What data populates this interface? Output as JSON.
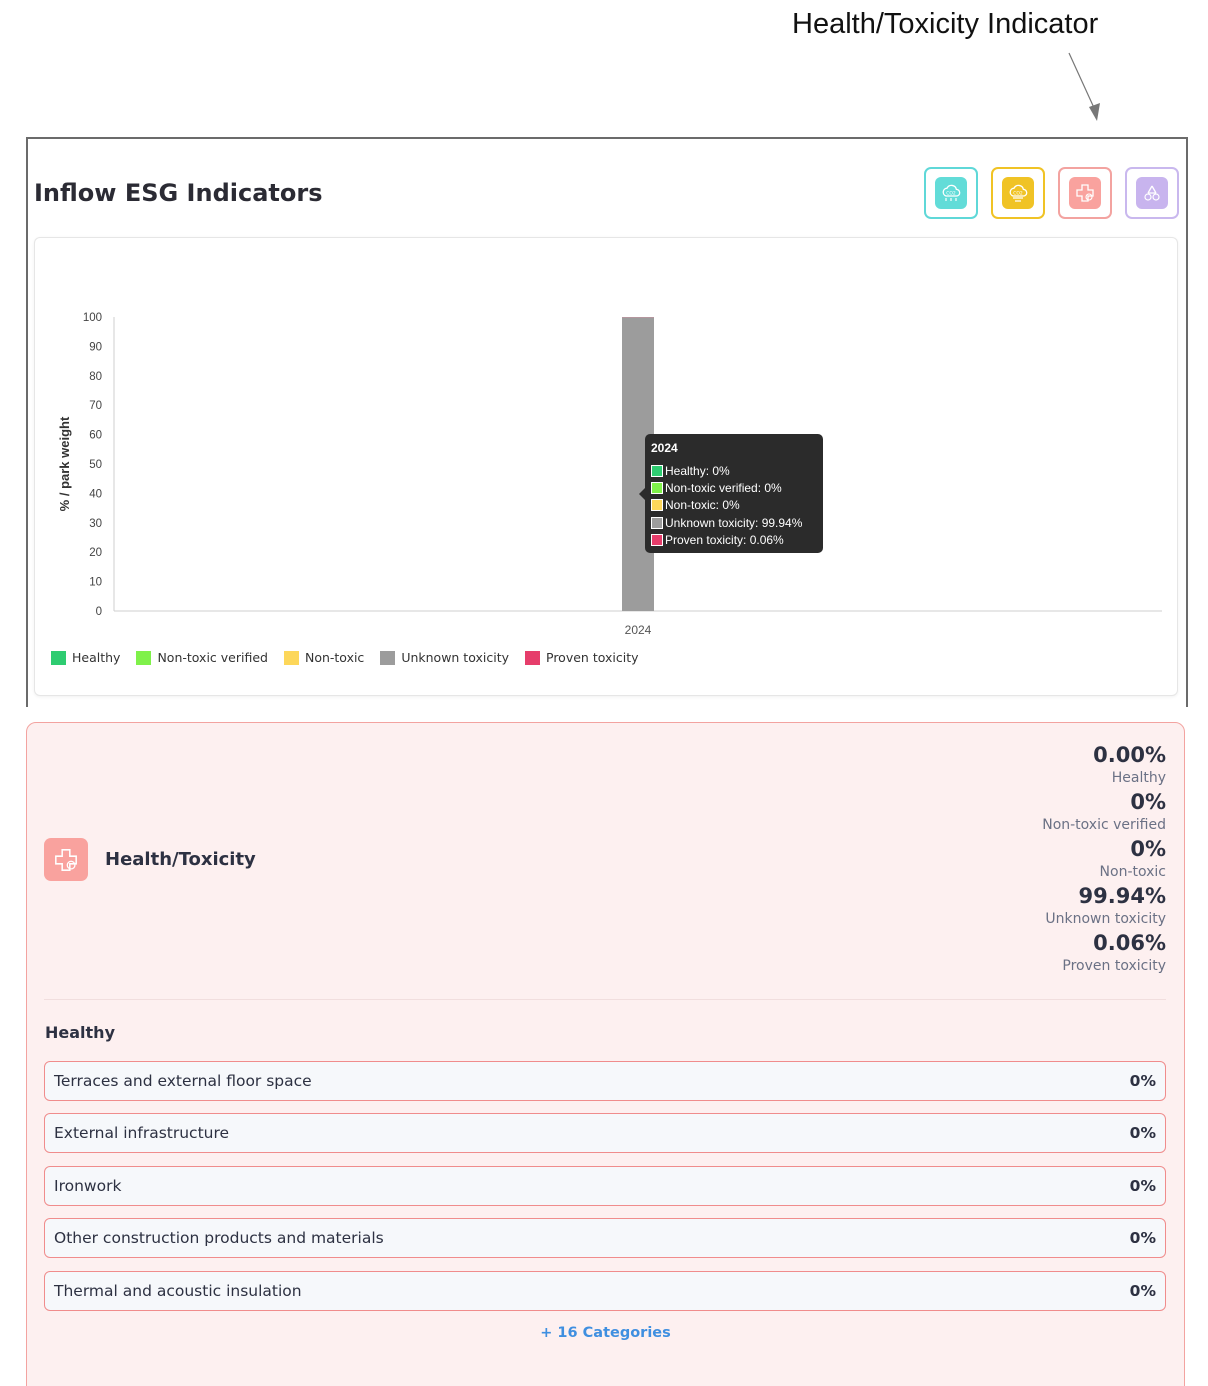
{
  "annotation": {
    "title": "Health/Toxicity Indicator"
  },
  "panel": {
    "title": "Inflow ESG Indicators"
  },
  "indicator_buttons": [
    {
      "name": "carbon-inflow",
      "icon": "co2-cloud-icon",
      "border": "#5fd8d8",
      "fill": "#62dcd8"
    },
    {
      "name": "carbon-stock",
      "icon": "co2-cloud-icon",
      "border": "#f0c325",
      "fill": "#f0c325"
    },
    {
      "name": "health-toxicity",
      "icon": "medical-cross-icon",
      "border": "#f3a3a0",
      "fill": "#f9a29e"
    },
    {
      "name": "circularity",
      "icon": "recycle-icon",
      "border": "#c9b8ee",
      "fill": "#c8b4ee"
    }
  ],
  "chart_data": {
    "type": "bar",
    "stacked": true,
    "categories": [
      "2024"
    ],
    "ylabel": "% / park weight",
    "xlabel": "",
    "ylim": [
      0,
      100
    ],
    "yticks": [
      0,
      10,
      20,
      30,
      40,
      50,
      60,
      70,
      80,
      90,
      100
    ],
    "series": [
      {
        "name": "Healthy",
        "values": [
          0
        ],
        "color": "#2ecc71"
      },
      {
        "name": "Non-toxic verified",
        "values": [
          0
        ],
        "color": "#7ff14a"
      },
      {
        "name": "Non-toxic",
        "values": [
          0
        ],
        "color": "#fdd75a"
      },
      {
        "name": "Unknown toxicity",
        "values": [
          99.94
        ],
        "color": "#9c9c9c"
      },
      {
        "name": "Proven toxicity",
        "values": [
          0.06
        ],
        "color": "#e63d6b"
      }
    ],
    "legend_position": "bottom-left",
    "tooltip": {
      "title": "2024",
      "rows": [
        {
          "text": "Healthy: 0%",
          "color": "#2ecc71"
        },
        {
          "text": "Non-toxic verified: 0%",
          "color": "#7ff14a"
        },
        {
          "text": "Non-toxic: 0%",
          "color": "#fdd75a"
        },
        {
          "text": "Unknown toxicity: 99.94%",
          "color": "#9c9c9c"
        },
        {
          "text": "Proven toxicity: 0.06%",
          "color": "#e63d6b"
        }
      ]
    }
  },
  "health_panel": {
    "title": "Health/Toxicity",
    "stats": [
      {
        "value": "0.00%",
        "label": "Healthy"
      },
      {
        "value": "0%",
        "label": "Non-toxic verified"
      },
      {
        "value": "0%",
        "label": "Non-toxic"
      },
      {
        "value": "99.94%",
        "label": "Unknown toxicity"
      },
      {
        "value": "0.06%",
        "label": "Proven toxicity"
      }
    ],
    "section_title": "Healthy",
    "categories": [
      {
        "name": "Terraces and external floor space",
        "value": "0%"
      },
      {
        "name": "External infrastructure",
        "value": "0%"
      },
      {
        "name": "Ironwork",
        "value": "0%"
      },
      {
        "name": "Other construction products and materials",
        "value": "0%"
      },
      {
        "name": "Thermal and acoustic insulation",
        "value": "0%"
      }
    ],
    "more_link": "+ 16 Categories"
  }
}
